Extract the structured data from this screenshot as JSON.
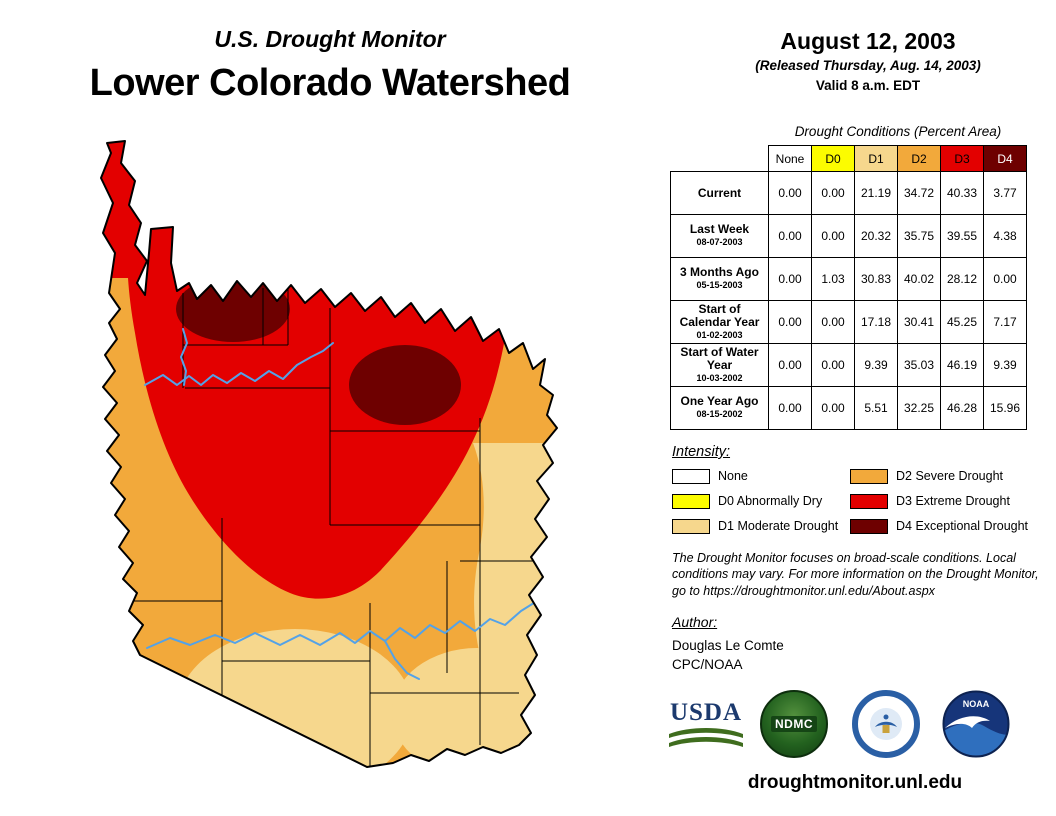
{
  "header": {
    "program": "U.S. Drought Monitor",
    "region": "Lower Colorado Watershed",
    "date": "August 12, 2003",
    "released": "(Released Thursday, Aug. 14, 2003)",
    "valid": "Valid 8 a.m. EDT"
  },
  "table": {
    "title": "Drought Conditions (Percent Area)",
    "columns": [
      {
        "key": "none",
        "label": "None"
      },
      {
        "key": "d0",
        "label": "D0"
      },
      {
        "key": "d1",
        "label": "D1"
      },
      {
        "key": "d2",
        "label": "D2"
      },
      {
        "key": "d3",
        "label": "D3"
      },
      {
        "key": "d4",
        "label": "D4"
      }
    ],
    "rows": [
      {
        "label": "Current",
        "date": "",
        "values": [
          "0.00",
          "0.00",
          "21.19",
          "34.72",
          "40.33",
          "3.77"
        ]
      },
      {
        "label": "Last Week",
        "date": "08-07-2003",
        "values": [
          "0.00",
          "0.00",
          "20.32",
          "35.75",
          "39.55",
          "4.38"
        ]
      },
      {
        "label": "3 Months Ago",
        "date": "05-15-2003",
        "values": [
          "0.00",
          "1.03",
          "30.83",
          "40.02",
          "28.12",
          "0.00"
        ]
      },
      {
        "label": "Start of Calendar Year",
        "date": "01-02-2003",
        "values": [
          "0.00",
          "0.00",
          "17.18",
          "30.41",
          "45.25",
          "7.17"
        ]
      },
      {
        "label": "Start of Water Year",
        "date": "10-03-2002",
        "values": [
          "0.00",
          "0.00",
          "9.39",
          "35.03",
          "46.19",
          "9.39"
        ]
      },
      {
        "label": "One Year Ago",
        "date": "08-15-2002",
        "values": [
          "0.00",
          "0.00",
          "5.51",
          "32.25",
          "46.28",
          "15.96"
        ]
      }
    ]
  },
  "legend": {
    "title": "Intensity:",
    "items": [
      {
        "key": "none",
        "label": "None"
      },
      {
        "key": "d0",
        "label": "D0 Abnormally Dry"
      },
      {
        "key": "d1",
        "label": "D1 Moderate Drought"
      },
      {
        "key": "d2",
        "label": "D2 Severe Drought"
      },
      {
        "key": "d3",
        "label": "D3 Extreme Drought"
      },
      {
        "key": "d4",
        "label": "D4 Exceptional Drought"
      }
    ]
  },
  "palette": {
    "none": "#FFFFFF",
    "d0": "#FCFC00",
    "d1": "#F6D78D",
    "d2": "#F2A93B",
    "d3": "#E30000",
    "d4": "#6E0000",
    "river": "#53A2E8"
  },
  "disclaimer": "The Drought Monitor focuses on broad-scale conditions. Local conditions may vary. For more information on the Drought Monitor, go to https://droughtmonitor.unl.edu/About.aspx",
  "author": {
    "heading": "Author:",
    "name": "Douglas Le Comte",
    "org": "CPC/NOAA"
  },
  "logos": {
    "usda": "USDA",
    "ndmc": "NDMC",
    "noaa": "NOAA"
  },
  "footer": {
    "url": "droughtmonitor.unl.edu"
  }
}
